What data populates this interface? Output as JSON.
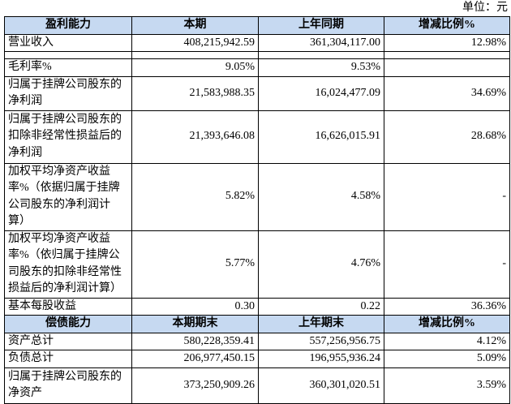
{
  "unit": "单位：元",
  "sections": [
    {
      "header": [
        "盈利能力",
        "本期",
        "上年同期",
        "增减比例%"
      ],
      "rows": [
        {
          "label": [
            "营业收入"
          ],
          "values": [
            "408,215,942.59",
            "361,304,117.00",
            "12.98%"
          ]
        },
        {
          "label": [
            "毛利率%"
          ],
          "values": [
            "9.05%",
            "9.53%"
          ]
        },
        {
          "label": [
            "归属于挂牌公司股东的",
            "净利润"
          ],
          "values": [
            "21,583,988.35",
            "16,024,477.09",
            "34.69%"
          ]
        },
        {
          "label": [
            "归属于挂牌公司股东的",
            "扣除非经常性损益后的",
            "净利润"
          ],
          "values": [
            "21,393,646.08",
            "16,626,015.91",
            "28.68%"
          ]
        },
        {
          "label": [
            "加权平均净资产收益",
            "率%（依据归属于挂牌",
            "公司股东的净利润计",
            "算）"
          ],
          "values": [
            "5.82%",
            "4.58%",
            "-"
          ]
        },
        {
          "label": [
            "加权平均净资产收益",
            "率%（依归属于挂牌公",
            "司股东的扣除非经常性",
            "损益后的净利润计算）"
          ],
          "values": [
            "5.77%",
            "4.76%",
            "-"
          ]
        },
        {
          "label": [
            "基本每股收益"
          ],
          "values": [
            "0.30",
            "0.22",
            "36.36%"
          ]
        }
      ]
    },
    {
      "header": [
        "偿债能力",
        "本期期末",
        "上年期末",
        "增减比例%"
      ],
      "rows": [
        {
          "label": [
            "资产总计"
          ],
          "values": [
            "580,228,359.41",
            "557,256,956.75",
            "4.12%"
          ]
        },
        {
          "label": [
            "负债总计"
          ],
          "values": [
            "206,977,450.15",
            "196,955,936.24",
            "5.09%"
          ]
        },
        {
          "label": [
            "归属于挂牌公司股东的",
            "净资产"
          ],
          "values": [
            "373,250,909.26",
            "360,301,020.51",
            "3.59%"
          ]
        }
      ]
    }
  ]
}
